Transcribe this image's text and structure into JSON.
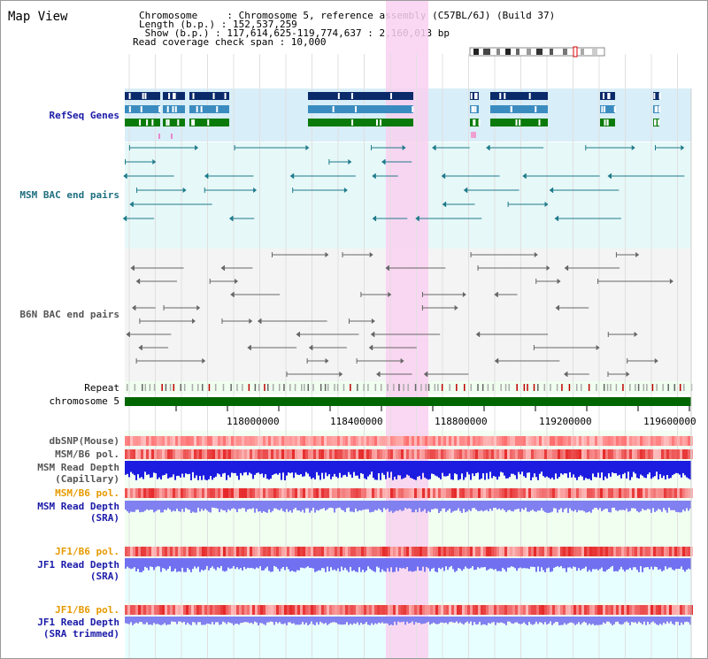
{
  "header": {
    "title": "Map View",
    "info_lines": [
      "Chromosome     : Chromosome 5, reference assembly (C57BL/6J) (Build 37)",
      "Length (b.p.) : 152,537,259",
      " Show (b.p.) : 117,614,625-119,774,637 : 2,160,013 bp",
      "Read coverage check span : 10,000"
    ]
  },
  "tracks": {
    "refseq": "RefSeq Genes",
    "msm_bac": "MSM BAC end pairs",
    "b6n_bac": "B6N BAC end pairs",
    "repeat": "Repeat",
    "chromosome": "chromosome 5",
    "dbsnp": "dbSNP(Mouse)",
    "msm_pol": "MSM/B6 pol.",
    "msm_depth_cap_1": "MSM Read Depth",
    "msm_depth_cap_2": "(Capillary)",
    "msm_pol_2": "MSM/B6 pol.",
    "msm_depth_sra_1": "MSM Read Depth",
    "msm_depth_sra_2": "(SRA)",
    "jf1_pol": "JF1/B6 pol.",
    "jf1_depth_1": "JF1 Read Depth",
    "jf1_depth_2": "(SRA)",
    "jf1_pol_2": "JF1/B6 pol.",
    "jf1_trim_1": "JF1 Read Depth",
    "jf1_trim_2": "(SRA trimmed)"
  },
  "axis": {
    "ticks": [
      "118000000",
      "118400000",
      "118800000",
      "119200000",
      "119600000"
    ]
  },
  "colors": {
    "refseq_bg": "#d8eef8",
    "msm_bg": "#e6f8f8",
    "b6n_bg": "#f4f4f4",
    "highlight": "#f9d0f0",
    "gene_dark": "#0a2a6a",
    "gene_mid": "#3a8cc0",
    "gene_green": "#0a7a0a",
    "chrom_bar": "#006600",
    "msm_line": "#1f7a8a",
    "b6n_line": "#666666"
  }
}
